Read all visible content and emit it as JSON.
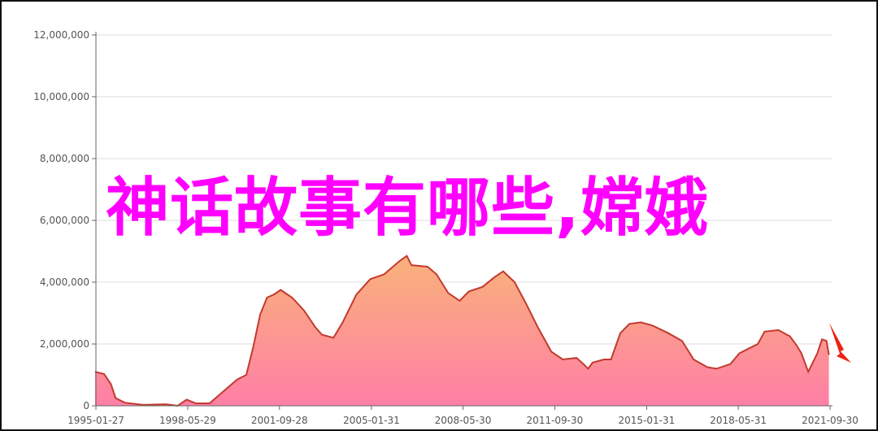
{
  "overlay_text": "神话故事有哪些,嫦娥",
  "colors": {
    "line": "#c23a2e",
    "fill_top": "#f9b27a",
    "fill_bottom": "#ff7fa6",
    "overlay": "#ff00ff",
    "arrow": "#ee2211",
    "grid": "#dddddd"
  },
  "chart_data": {
    "type": "area",
    "title": "",
    "xlabel": "",
    "ylabel": "",
    "x_range": [
      "1995-01-27",
      "2021-09-30"
    ],
    "ylim": [
      0,
      12000000
    ],
    "grid": true,
    "y_ticks": [
      "0",
      "2,000,000",
      "4,000,000",
      "6,000,000",
      "8,000,000",
      "10,000,000",
      "12,000,000"
    ],
    "y_tick_values": [
      0,
      2000000,
      4000000,
      6000000,
      8000000,
      10000000,
      12000000
    ],
    "x_ticks": [
      "1995-01-27",
      "1998-05-29",
      "2001-09-28",
      "2005-01-31",
      "2008-05-30",
      "2011-09-30",
      "2015-01-31",
      "2018-05-31",
      "2021-09-30"
    ],
    "annotation": "red downward arrow after last point",
    "series": [
      {
        "points": [
          [
            "1995-01",
            1100000
          ],
          [
            "1995-05",
            1030000
          ],
          [
            "1995-08",
            700000
          ],
          [
            "1995-10",
            250000
          ],
          [
            "1996-02",
            100000
          ],
          [
            "1996-10",
            30000
          ],
          [
            "1997-08",
            50000
          ],
          [
            "1998-01",
            0
          ],
          [
            "1998-05",
            200000
          ],
          [
            "1998-09",
            80000
          ],
          [
            "1999-03",
            80000
          ],
          [
            "1999-08",
            400000
          ],
          [
            "2000-03",
            850000
          ],
          [
            "2000-07",
            1000000
          ],
          [
            "2000-10",
            1900000
          ],
          [
            "2001-01",
            2950000
          ],
          [
            "2001-04",
            3500000
          ],
          [
            "2001-07",
            3600000
          ],
          [
            "2001-10",
            3750000
          ],
          [
            "2002-03",
            3500000
          ],
          [
            "2002-08",
            3100000
          ],
          [
            "2003-01",
            2550000
          ],
          [
            "2003-04",
            2300000
          ],
          [
            "2003-09",
            2200000
          ],
          [
            "2004-01",
            2700000
          ],
          [
            "2004-07",
            3600000
          ],
          [
            "2005-01",
            4100000
          ],
          [
            "2005-03",
            4150000
          ],
          [
            "2005-07",
            4250000
          ],
          [
            "2006-02",
            4700000
          ],
          [
            "2006-05",
            4850000
          ],
          [
            "2006-07",
            4550000
          ],
          [
            "2007-02",
            4500000
          ],
          [
            "2007-06",
            4250000
          ],
          [
            "2007-11",
            3650000
          ],
          [
            "2008-04",
            3400000
          ],
          [
            "2008-08",
            3700000
          ],
          [
            "2009-02",
            3850000
          ],
          [
            "2009-07",
            4150000
          ],
          [
            "2009-11",
            4350000
          ],
          [
            "2010-04",
            4000000
          ],
          [
            "2010-09",
            3300000
          ],
          [
            "2011-02",
            2550000
          ],
          [
            "2011-08",
            1750000
          ],
          [
            "2012-01",
            1500000
          ],
          [
            "2012-07",
            1550000
          ],
          [
            "2012-10",
            1350000
          ],
          [
            "2012-12",
            1200000
          ],
          [
            "2013-02",
            1400000
          ],
          [
            "2013-07",
            1500000
          ],
          [
            "2013-10",
            1500000
          ],
          [
            "2014-02",
            2350000
          ],
          [
            "2014-06",
            2650000
          ],
          [
            "2014-11",
            2700000
          ],
          [
            "2015-04",
            2600000
          ],
          [
            "2015-11",
            2350000
          ],
          [
            "2016-05",
            2100000
          ],
          [
            "2016-10",
            1500000
          ],
          [
            "2017-04",
            1250000
          ],
          [
            "2017-08",
            1200000
          ],
          [
            "2018-02",
            1350000
          ],
          [
            "2018-06",
            1700000
          ],
          [
            "2018-10",
            1850000
          ],
          [
            "2019-02",
            2000000
          ],
          [
            "2019-05",
            2400000
          ],
          [
            "2019-11",
            2450000
          ],
          [
            "2020-04",
            2250000
          ],
          [
            "2020-07",
            1950000
          ],
          [
            "2020-09",
            1700000
          ],
          [
            "2020-12",
            1100000
          ],
          [
            "2021-04",
            1700000
          ],
          [
            "2021-06",
            2150000
          ],
          [
            "2021-08",
            2100000
          ],
          [
            "2021-09",
            1650000
          ]
        ]
      }
    ]
  }
}
